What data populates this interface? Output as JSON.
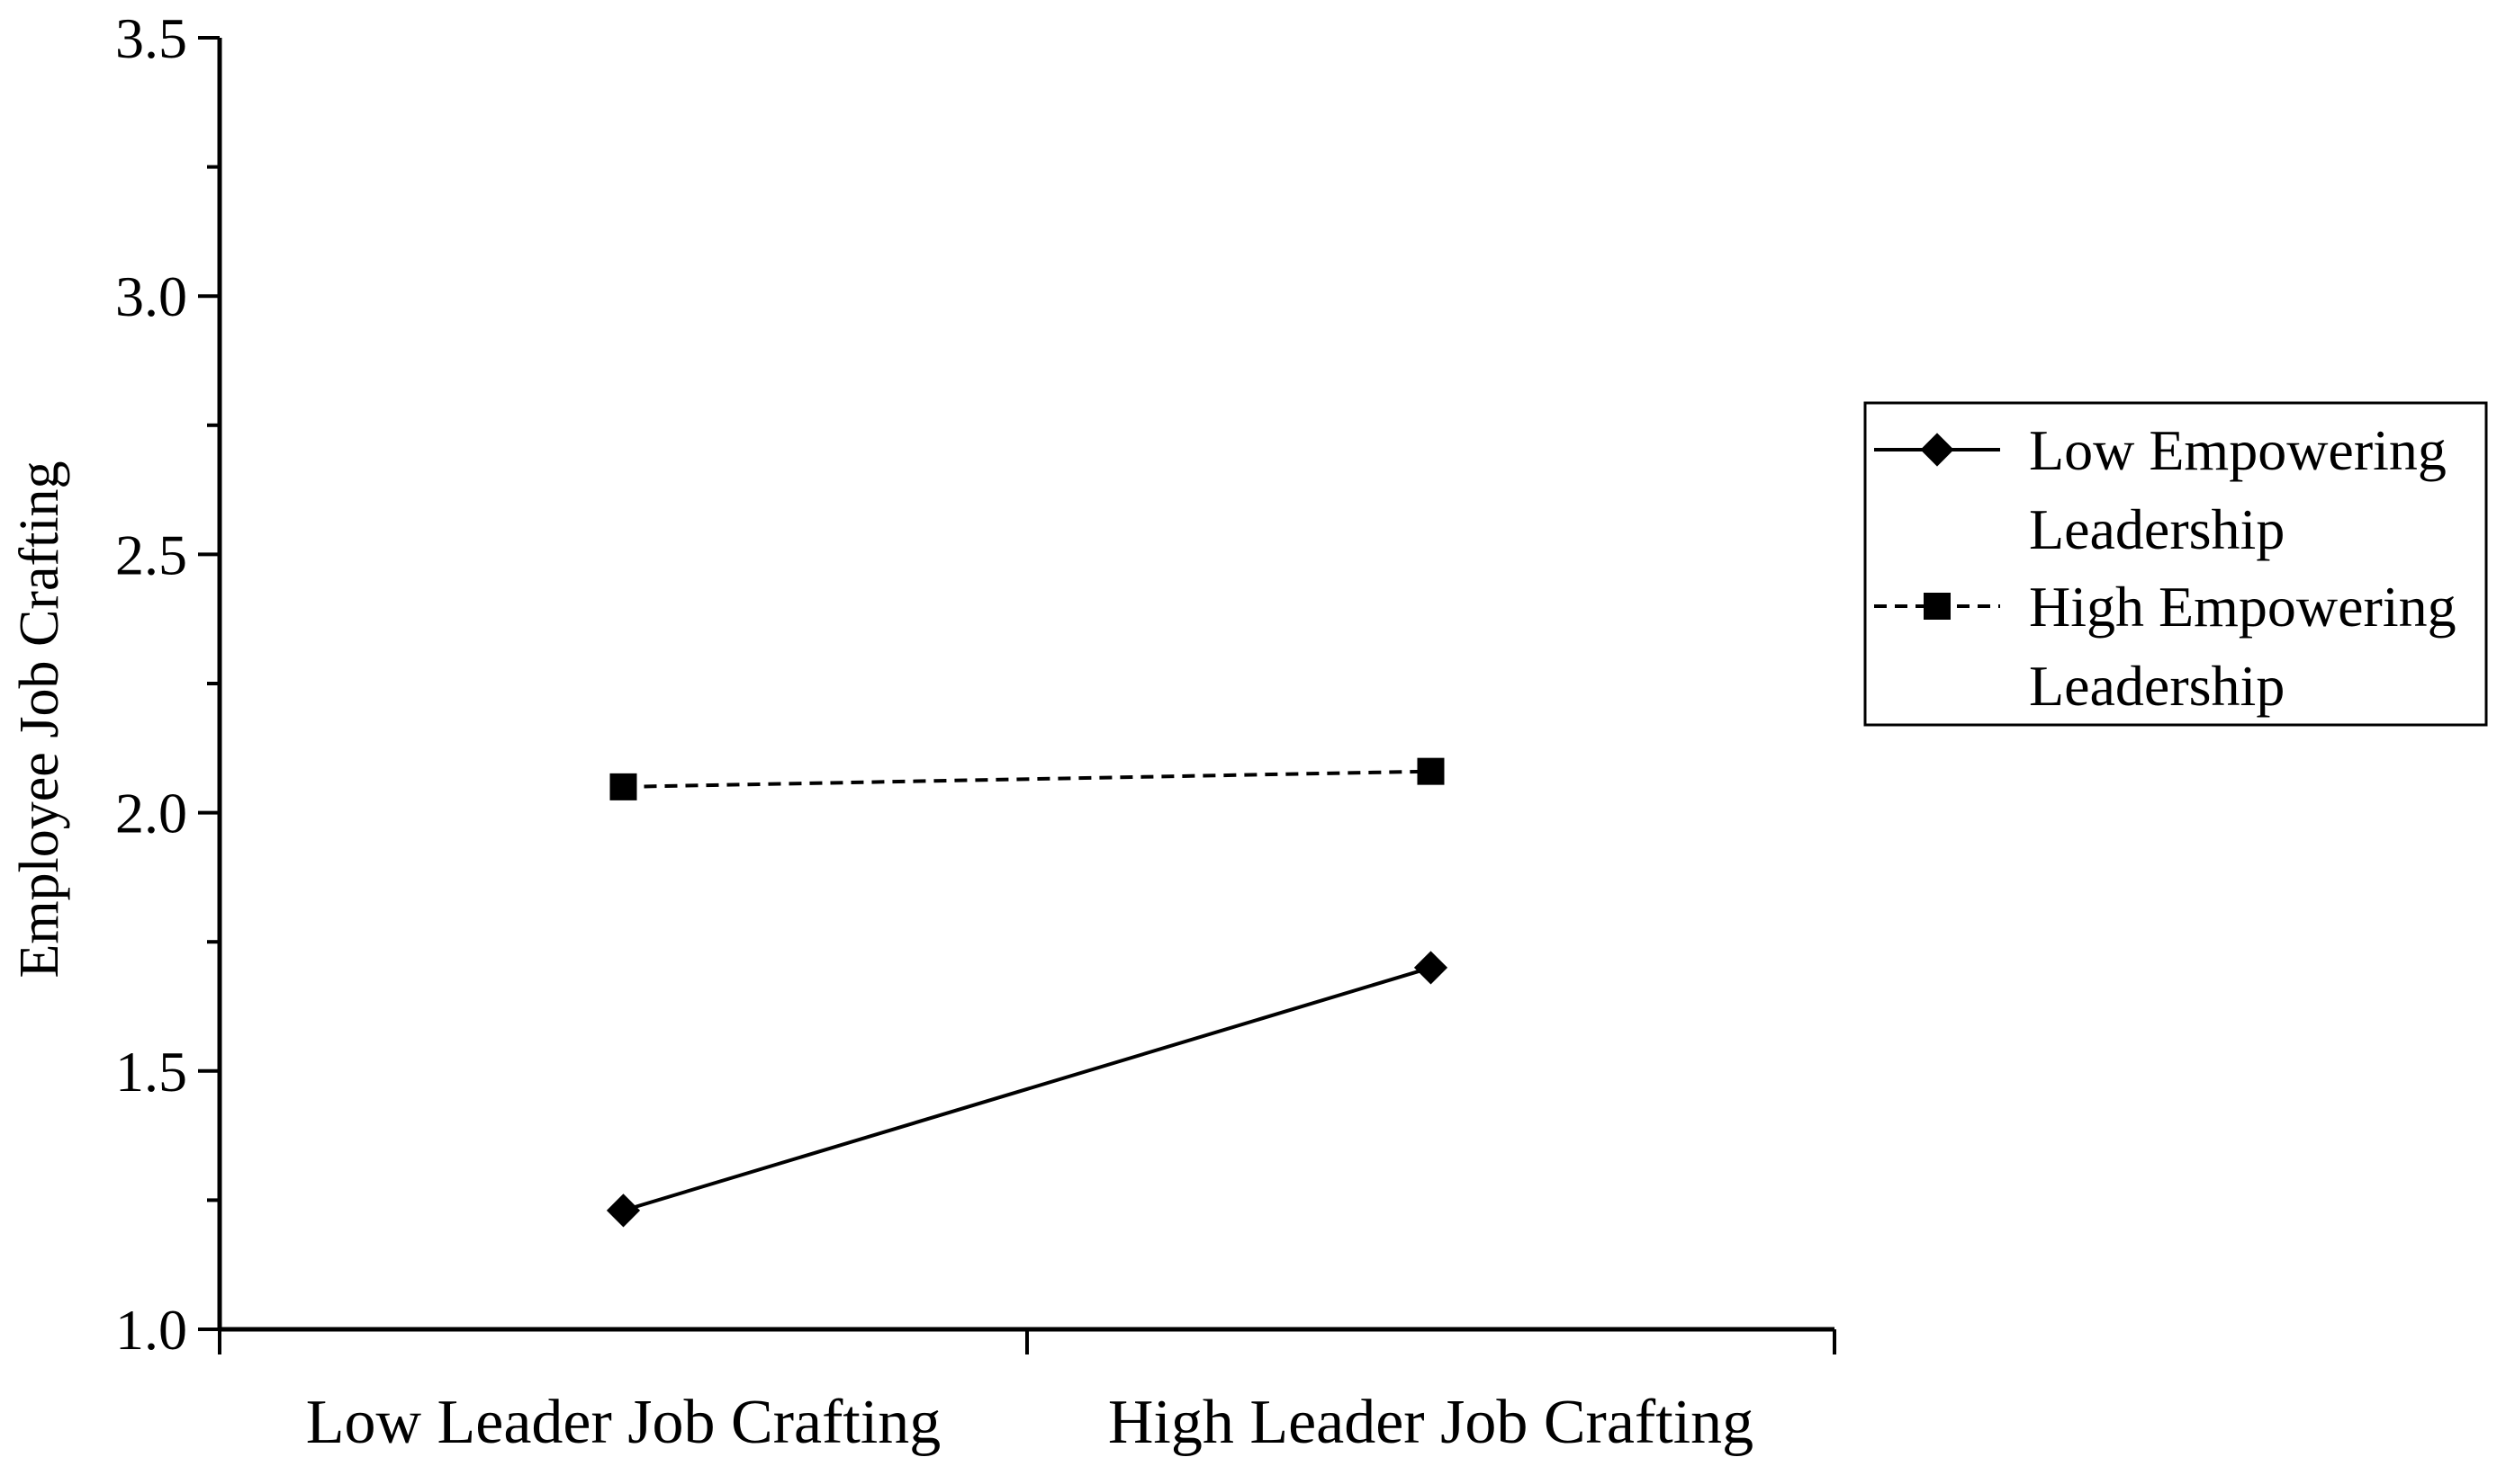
{
  "chart_data": {
    "type": "line",
    "ylabel": "Employee Job Crafting",
    "xlabel": "",
    "categories": [
      "Low Leader Job Crafting",
      "High Leader Job Crafting"
    ],
    "ylim": [
      1.0,
      3.5
    ],
    "yticks": [
      "1.0",
      "1.5",
      "2.0",
      "2.5",
      "3.0",
      "3.5"
    ],
    "grid": false,
    "legend_position": "right",
    "series": [
      {
        "name": "Low Empowering Leadership",
        "legend_lines": [
          "Low Empowering",
          "Leadership"
        ],
        "values": [
          1.23,
          1.7
        ],
        "marker": "diamond",
        "line_style": "solid",
        "color": "#000000"
      },
      {
        "name": "High Empowering Leadership",
        "legend_lines": [
          "High Empowering",
          "Leadership"
        ],
        "values": [
          2.05,
          2.08
        ],
        "marker": "square",
        "line_style": "dashed",
        "color": "#000000"
      }
    ]
  }
}
